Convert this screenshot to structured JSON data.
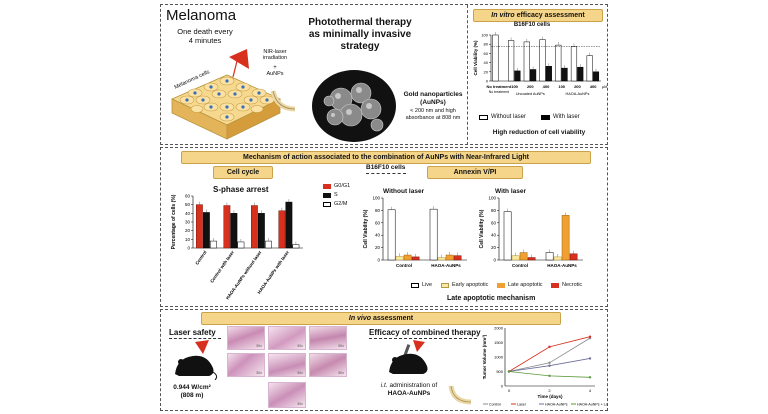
{
  "top": {
    "title": "Melanoma",
    "stat_line1": "One death every",
    "stat_line2": "4 minutes",
    "cells_label": "Melanoma cells",
    "laser_label": "NIR-laser irradiation",
    "plus": "+",
    "aunps": "AuNPs",
    "main_title": "Photothermal therapy as minimally invasive strategy",
    "gold_title": "Gold nanoparticles",
    "gold_sub": "(AuNPs)",
    "gold_desc": "< 200 nm and high absorbance at 808 nm",
    "invitro_banner": "In vitro efficacy assessment",
    "invitro_banner_em": "In vitro",
    "invitro_banner_rest": "efficacy assessment",
    "b16_cells": "B16F10 cells",
    "conclusion": "High reduction of cell viability",
    "legend_without": "Without laser",
    "legend_with": "With laser",
    "group1": "Uncoated AuNPs",
    "group2": "HAOA-AuNPs",
    "unit": "µM",
    "no_treatment": "No treatment"
  },
  "mid": {
    "banner": "Mechanism of action associated  to the combination of AuNPs with Near-Infrared Light",
    "b16_cells": "B16F10 cells",
    "cell_cycle": "Cell cycle",
    "annexin": "Annexin V/PI",
    "s_phase": "S-phase arrest",
    "without_laser": "Without laser",
    "with_laser": "With laser",
    "late_mech": "Late apoptotic mechanism",
    "cc_legend": [
      "G0/G1",
      "S",
      "G2/M"
    ],
    "ann_legend": [
      "Live",
      "Early apoptotic",
      "Late apoptotic",
      "Necrotic"
    ]
  },
  "bottom": {
    "banner_em": "In vivo",
    "banner_rest": "assessment",
    "laser_safety": "Laser safety",
    "power": "0.944 W/cm²",
    "wavelength": "(808 m)",
    "efficacy": "Efficacy of combined therapy",
    "admin_em": "i.t.",
    "admin_rest": "administration of",
    "admin_line2": "HAOA-AuNPs",
    "histo_scale": "50x"
  },
  "chart_data": [
    {
      "type": "bar",
      "title": "",
      "ylabel": "Cell Viability (%)",
      "xlabel": "",
      "ylim": [
        0,
        100
      ],
      "yticks": [
        0,
        20,
        40,
        60,
        80,
        100
      ],
      "categories": [
        "No treatment",
        "100",
        "200",
        "400",
        "100",
        "200",
        "400"
      ],
      "series": [
        {
          "name": "Without laser",
          "values": [
            100,
            88,
            85,
            90,
            78,
            75,
            55
          ]
        },
        {
          "name": "With laser",
          "values": [
            null,
            22,
            25,
            32,
            28,
            30,
            20
          ]
        }
      ]
    },
    {
      "type": "bar",
      "title": "",
      "ylabel": "Percentage of cells (%)",
      "ylim": [
        0,
        60
      ],
      "yticks": [
        0,
        10,
        20,
        30,
        40,
        50,
        60
      ],
      "categories": [
        "Control",
        "Control with laser",
        "HAOA-AuNPs without laser",
        "HAOA-AuNPs with laser"
      ],
      "series": [
        {
          "name": "G0/G1",
          "values": [
            50,
            49,
            49,
            43
          ]
        },
        {
          "name": "S",
          "values": [
            41,
            40,
            40,
            53
          ]
        },
        {
          "name": "G2/M",
          "values": [
            8,
            7,
            8,
            4
          ]
        }
      ]
    },
    {
      "type": "bar",
      "title": "",
      "ylabel": "Cell Viability (%)",
      "ylim": [
        0,
        100
      ],
      "yticks": [
        0,
        20,
        40,
        60,
        80,
        100
      ],
      "categories": [
        "Control",
        "HAOA-AuNPs"
      ],
      "series": [
        {
          "name": "Live",
          "values": [
            81,
            82
          ]
        },
        {
          "name": "Early apoptotic",
          "values": [
            6,
            4
          ]
        },
        {
          "name": "Late apoptotic",
          "values": [
            8,
            8
          ]
        },
        {
          "name": "Necrotic",
          "values": [
            5,
            7
          ]
        }
      ]
    },
    {
      "type": "bar",
      "title": "",
      "ylabel": "Cell Viability (%)",
      "ylim": [
        0,
        100
      ],
      "yticks": [
        0,
        20,
        40,
        60,
        80,
        100
      ],
      "categories": [
        "Control",
        "HAOA-AuNPs"
      ],
      "series": [
        {
          "name": "Live",
          "values": [
            78,
            12
          ]
        },
        {
          "name": "Early apoptotic",
          "values": [
            7,
            5
          ]
        },
        {
          "name": "Late apoptotic",
          "values": [
            12,
            72
          ]
        },
        {
          "name": "Necrotic",
          "values": [
            4,
            10
          ]
        }
      ]
    },
    {
      "type": "line",
      "title": "",
      "xlabel": "Time (days)",
      "ylabel": "Tumor Volume (mm³)",
      "x": [
        0,
        2,
        4
      ],
      "xticks": [
        0,
        2,
        4
      ],
      "ylim": [
        0,
        2000
      ],
      "yticks": [
        0,
        500,
        1000,
        1500,
        2000
      ],
      "series": [
        {
          "name": "Control",
          "values": [
            500,
            800,
            1650
          ]
        },
        {
          "name": "Laser",
          "values": [
            500,
            1350,
            1700
          ]
        },
        {
          "name": "HAOA-AuNPs",
          "values": [
            500,
            700,
            950
          ]
        },
        {
          "name": "HAOA-AuNPs + Laser",
          "values": [
            500,
            350,
            300
          ]
        }
      ]
    }
  ],
  "colors": {
    "gold": "#f5d58a",
    "red": "#d7301f",
    "black": "#111111",
    "orange": "#f0a030",
    "lightyellow": "#fbe8a0",
    "green": "#5a9a3a",
    "grey": "#888888"
  }
}
